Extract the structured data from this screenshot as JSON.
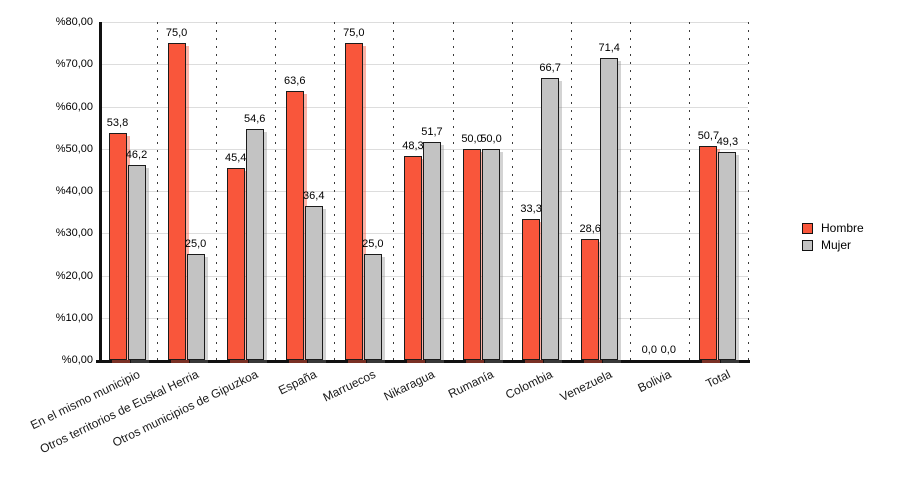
{
  "chart_data": {
    "type": "bar",
    "title": "",
    "xlabel": "",
    "ylabel": "",
    "ylim": [
      0,
      80
    ],
    "grid": {
      "horizontal": true,
      "vertical_dotted_separators": true
    },
    "y_ticks": [
      {
        "label": "%80,00",
        "value": 80
      },
      {
        "label": "%70,00",
        "value": 70
      },
      {
        "label": "%60,00",
        "value": 60
      },
      {
        "label": "%50,00",
        "value": 50
      },
      {
        "label": "%40,00",
        "value": 40
      },
      {
        "label": "%30,00",
        "value": 30
      },
      {
        "label": "%20,00",
        "value": 20
      },
      {
        "label": "%10,00",
        "value": 10
      },
      {
        "label": "%0,00",
        "value": 0
      }
    ],
    "categories": [
      "En el mismo municipio",
      "Otros territorios de Euskal Herria",
      "Otros municipios de Gipuzkoa",
      "España",
      "Marruecos",
      "Nikaragua",
      "Rumanía",
      "Colombia",
      "Venezuela",
      "Bolivia",
      "Total"
    ],
    "series": [
      {
        "name": "Hombre",
        "color": "#F9563B",
        "border_color": "#1b1b1b",
        "shadow_color": "rgba(249,86,59,0.45)",
        "values": [
          53.8,
          75.0,
          45.4,
          63.6,
          75.0,
          48.3,
          50.0,
          33.3,
          28.6,
          0.0,
          50.7
        ],
        "labels": [
          "53,8",
          "75,0",
          "45,4",
          "63,6",
          "75,0",
          "48,3",
          "50,0",
          "33,3",
          "28,6",
          "0,0",
          "50,7"
        ]
      },
      {
        "name": "Mujer",
        "color": "#C3C3C3",
        "border_color": "#1b1b1b",
        "shadow_color": "rgba(130,130,130,0.35)",
        "values": [
          46.2,
          25.0,
          54.6,
          36.4,
          25.0,
          51.7,
          50.0,
          66.7,
          71.4,
          0.0,
          49.3
        ],
        "labels": [
          "46,2",
          "25,0",
          "54,6",
          "36,4",
          "25,0",
          "51,7",
          "50,0",
          "66,7",
          "71,4",
          "0,0",
          "49,3"
        ]
      }
    ],
    "legend": {
      "position": "right",
      "items": [
        "Hombre",
        "Mujer"
      ]
    }
  }
}
